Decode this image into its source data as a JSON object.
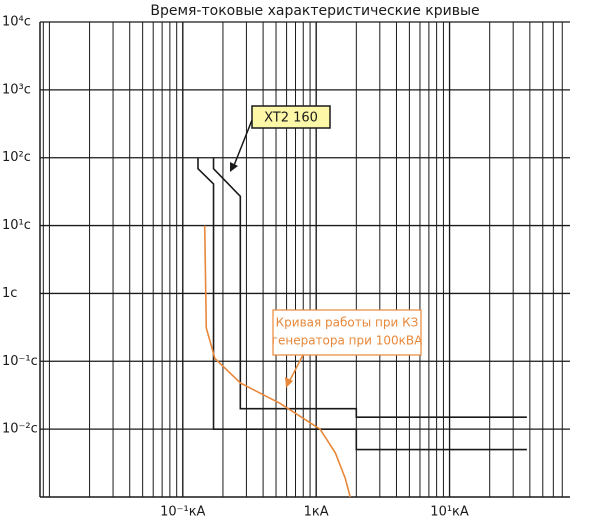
{
  "chart_data": {
    "type": "line",
    "title": "Время-токовые характеристические кривые",
    "xscale": "log",
    "yscale": "log",
    "grid": true,
    "minor_grid": true,
    "xlim": [
      0.0085,
      80
    ],
    "ylim": [
      0.001,
      10000
    ],
    "xticks": [
      {
        "value": 0.1,
        "label": "10⁻¹кА"
      },
      {
        "value": 1,
        "label": "1кА"
      },
      {
        "value": 10,
        "label": "10¹кА"
      }
    ],
    "yticks": [
      {
        "value": 0.01,
        "label": "10⁻²с"
      },
      {
        "value": 0.1,
        "label": "10⁻¹с"
      },
      {
        "value": 1,
        "label": "1с"
      },
      {
        "value": 10,
        "label": "10¹с"
      },
      {
        "value": 100,
        "label": "10²с"
      },
      {
        "value": 1000,
        "label": "10³с"
      },
      {
        "value": 10000,
        "label": "10⁴с"
      }
    ],
    "series": [
      {
        "color": "#1a1a1a",
        "x": [
          0.13,
          0.13,
          0.17,
          0.17,
          2,
          2,
          38
        ],
        "values": [
          100,
          69,
          41,
          0.01,
          0.01,
          0.005,
          0.005
        ]
      },
      {
        "color": "#1a1a1a",
        "x": [
          0.17,
          0.17,
          0.27,
          0.27,
          2,
          2,
          38
        ],
        "values": [
          100,
          69,
          27,
          0.02,
          0.02,
          0.015,
          0.015
        ]
      },
      {
        "color": "#e8883a",
        "x": [
          0.146,
          0.15,
          0.174,
          0.27,
          0.535,
          1.07,
          1.39,
          1.65,
          1.8
        ],
        "values": [
          10,
          0.31,
          0.11,
          0.048,
          0.024,
          0.01,
          0.0045,
          0.0019,
          0.001
        ]
      }
    ],
    "annotations": [
      {
        "text": [
          "XT2 160"
        ]
      },
      {
        "text": [
          "Кривая работы при КЗ",
          "генератора при 100кВА"
        ]
      }
    ]
  }
}
